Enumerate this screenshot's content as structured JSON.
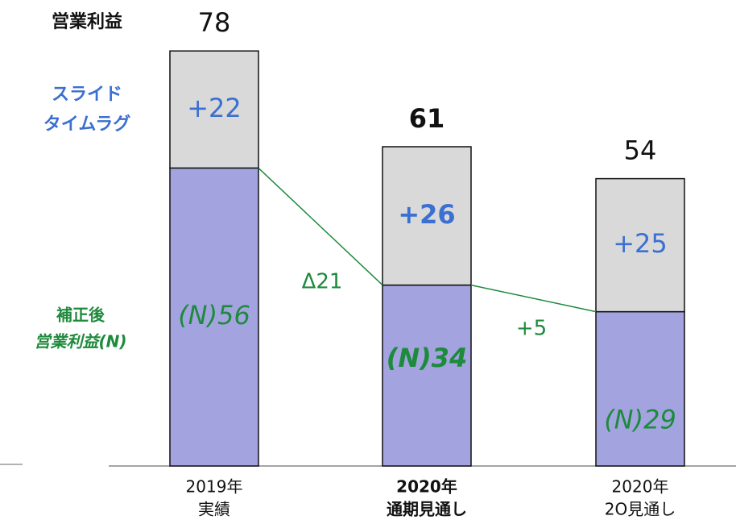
{
  "chart_data": {
    "type": "stacked_bar",
    "categories": [
      [
        "2019年",
        "実績"
      ],
      [
        "2020年",
        "通期見通し"
      ],
      [
        "2020年",
        "2O見通し"
      ]
    ],
    "emphasis_index": 1,
    "series": [
      {
        "name": [
          "補正後",
          "営業利益(N)"
        ],
        "color": "#a3a3e0",
        "label_color": "#1e8a3c",
        "values": [
          56,
          34,
          29
        ],
        "value_labels": [
          "(N)56",
          "(N)34",
          "(N)29"
        ]
      },
      {
        "name": [
          "スライド",
          "タイムラグ"
        ],
        "color": "#d9d9d9",
        "label_color": "#3b6fd1",
        "values": [
          22,
          26,
          25
        ],
        "value_labels": [
          "+22",
          "+26",
          "+25"
        ]
      }
    ],
    "total_label": "営業利益",
    "totals": [
      78,
      61,
      54
    ],
    "annotations": [
      "Δ21",
      "+5"
    ],
    "ylim": [
      0,
      80
    ]
  }
}
